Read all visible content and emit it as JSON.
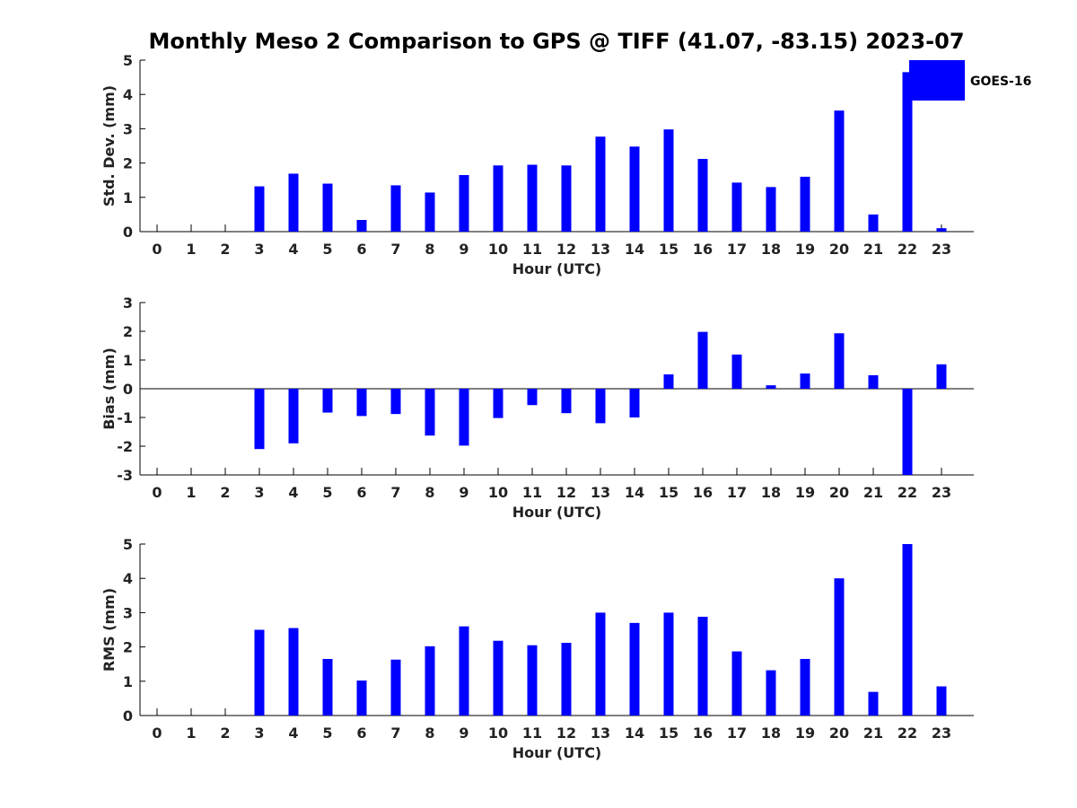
{
  "title": "Monthly Meso 2 Comparison to GPS @ TIFF (41.07, -83.15) 2023-07",
  "legend": {
    "label": "GOES-16",
    "color": "#0000ff",
    "placement": "top-right"
  },
  "chart_data": [
    {
      "type": "bar",
      "name": "std-dev",
      "xlabel": "Hour (UTC)",
      "ylabel": "Std. Dev. (mm)",
      "ylim": [
        0,
        5
      ],
      "yticks": [
        0,
        1,
        2,
        3,
        4,
        5
      ],
      "categories": [
        "0",
        "1",
        "2",
        "3",
        "4",
        "5",
        "6",
        "7",
        "8",
        "9",
        "10",
        "11",
        "12",
        "13",
        "14",
        "15",
        "16",
        "17",
        "18",
        "19",
        "20",
        "21",
        "22",
        "23"
      ],
      "values": [
        null,
        null,
        null,
        1.32,
        1.69,
        1.4,
        0.34,
        1.35,
        1.14,
        1.65,
        1.93,
        1.95,
        1.93,
        2.77,
        2.48,
        2.98,
        2.12,
        1.43,
        1.3,
        1.6,
        3.53,
        0.5,
        4.65,
        0.1
      ],
      "color": "#0000ff"
    },
    {
      "type": "bar",
      "name": "bias",
      "xlabel": "Hour (UTC)",
      "ylabel": "Bias (mm)",
      "ylim": [
        -3,
        3
      ],
      "yticks": [
        -3,
        -2,
        -1,
        0,
        1,
        2,
        3
      ],
      "categories": [
        "0",
        "1",
        "2",
        "3",
        "4",
        "5",
        "6",
        "7",
        "8",
        "9",
        "10",
        "11",
        "12",
        "13",
        "14",
        "15",
        "16",
        "17",
        "18",
        "19",
        "20",
        "21",
        "22",
        "23"
      ],
      "values": [
        null,
        null,
        null,
        -2.1,
        -1.9,
        -0.83,
        -0.95,
        -0.88,
        -1.63,
        -1.98,
        -1.02,
        -0.57,
        -0.85,
        -1.2,
        -1.0,
        0.5,
        1.98,
        1.19,
        0.12,
        0.53,
        1.93,
        0.47,
        -3.0,
        0.85
      ],
      "color": "#0000ff"
    },
    {
      "type": "bar",
      "name": "rms",
      "xlabel": "Hour (UTC)",
      "ylabel": "RMS (mm)",
      "ylim": [
        0,
        5
      ],
      "yticks": [
        0,
        1,
        2,
        3,
        4,
        5
      ],
      "categories": [
        "0",
        "1",
        "2",
        "3",
        "4",
        "5",
        "6",
        "7",
        "8",
        "9",
        "10",
        "11",
        "12",
        "13",
        "14",
        "15",
        "16",
        "17",
        "18",
        "19",
        "20",
        "21",
        "22",
        "23"
      ],
      "values": [
        null,
        null,
        null,
        2.5,
        2.55,
        1.65,
        1.02,
        1.63,
        2.02,
        2.6,
        2.18,
        2.05,
        2.12,
        3.0,
        2.7,
        3.0,
        2.88,
        1.87,
        1.32,
        1.65,
        4.0,
        0.69,
        5.0,
        0.85
      ],
      "color": "#0000ff"
    }
  ]
}
